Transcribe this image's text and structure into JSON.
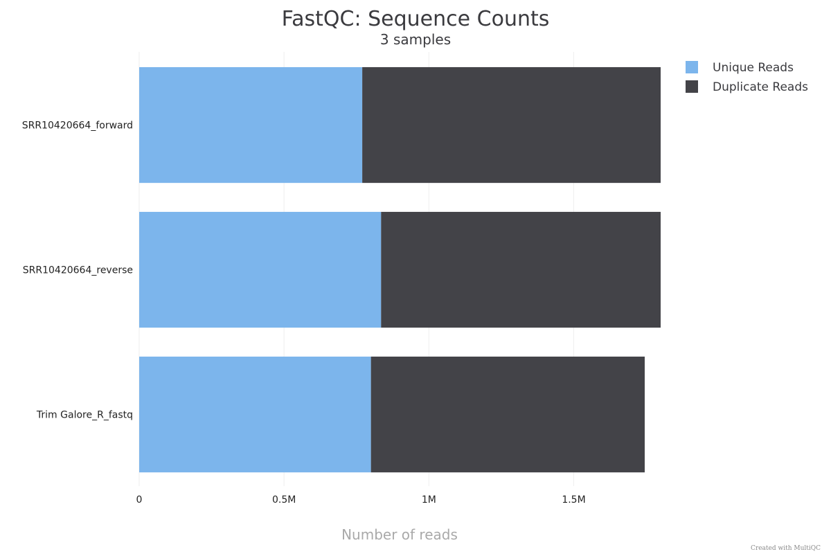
{
  "chart_data": {
    "type": "bar",
    "orientation": "horizontal",
    "stacked": true,
    "title": "FastQC: Sequence Counts",
    "subtitle": "3 samples",
    "xlabel": "Number of reads",
    "ylabel": "",
    "categories": [
      "SRR10420664_forward",
      "SRR10420664_reverse",
      "Trim Galore_R_fastq"
    ],
    "series": [
      {
        "name": "Unique Reads",
        "color": "#7cb5ec",
        "values": [
          770000,
          835000,
          800000
        ]
      },
      {
        "name": "Duplicate Reads",
        "color": "#434348",
        "values": [
          1030000,
          965000,
          945000
        ]
      }
    ],
    "xlim": [
      0,
      1800000
    ],
    "xticks": [
      {
        "value": 0,
        "label": "0"
      },
      {
        "value": 500000,
        "label": "0.5M"
      },
      {
        "value": 1000000,
        "label": "1M"
      },
      {
        "value": 1500000,
        "label": "1.5M"
      }
    ],
    "grid": true,
    "legend_position": "top-right"
  },
  "credit": "Created with MultiQC"
}
